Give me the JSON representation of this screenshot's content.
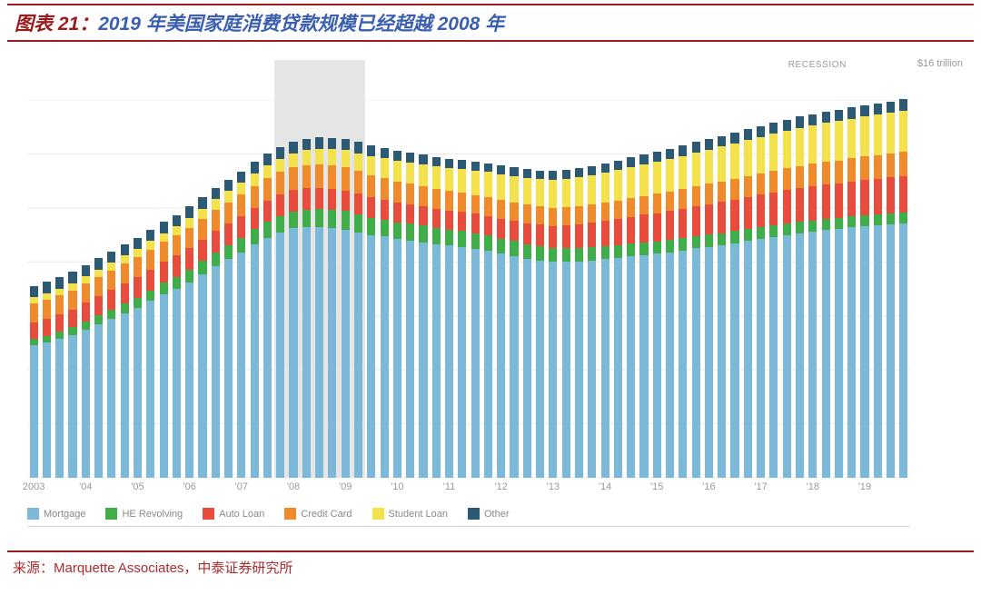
{
  "title_prefix": "图表 21：",
  "title_main": "2019 年美国家庭消费贷款规模已经超越 2008 年",
  "recession_label": "RECESSION",
  "y_top_label": "$16 trillion",
  "source_text": "来源：Marquette Associates，中泰证券研究所",
  "chart": {
    "type": "stacked-bar",
    "ylim": [
      0,
      14
    ],
    "yticks": [
      0,
      2,
      4,
      6,
      8,
      10,
      12,
      14
    ],
    "background_color": "#ffffff",
    "grid_color": "#e9e9e4",
    "axis_text_color": "#9a9a92",
    "recession_band": {
      "start_index": 19,
      "end_index": 26,
      "color": "#e5e5e5"
    },
    "bar_width_ratio": 0.64,
    "series": [
      {
        "key": "mortgage",
        "label": "Mortgage",
        "color": "#7cb8d8"
      },
      {
        "key": "herevolving",
        "label": "HE Revolving",
        "color": "#3fae4a"
      },
      {
        "key": "autoloan",
        "label": "Auto Loan",
        "color": "#e84c3d"
      },
      {
        "key": "creditcard",
        "label": "Credit Card",
        "color": "#ef8b2c"
      },
      {
        "key": "studentloan",
        "label": "Student Loan",
        "color": "#f3e24b"
      },
      {
        "key": "other",
        "label": "Other",
        "color": "#2c5a74"
      }
    ],
    "x_major_labels": [
      "2003",
      "'04",
      "'05",
      "'06",
      "'07",
      "'08",
      "'09",
      "'10",
      "'11",
      "'12",
      "'13",
      "'14",
      "'15",
      "'16",
      "'17",
      "'18",
      "'19"
    ],
    "x_major_every": 4,
    "quarters": 68,
    "data": {
      "mortgage": [
        4.9,
        5.0,
        5.15,
        5.3,
        5.5,
        5.7,
        5.9,
        6.1,
        6.3,
        6.55,
        6.8,
        7.0,
        7.25,
        7.55,
        7.85,
        8.1,
        8.35,
        8.65,
        8.9,
        9.1,
        9.25,
        9.3,
        9.3,
        9.25,
        9.2,
        9.1,
        9.0,
        8.95,
        8.85,
        8.8,
        8.72,
        8.65,
        8.6,
        8.55,
        8.48,
        8.4,
        8.3,
        8.22,
        8.12,
        8.05,
        8.0,
        8.0,
        8.02,
        8.05,
        8.1,
        8.15,
        8.2,
        8.25,
        8.3,
        8.35,
        8.42,
        8.5,
        8.56,
        8.62,
        8.7,
        8.78,
        8.85,
        8.92,
        9.0,
        9.06,
        9.12,
        9.18,
        9.22,
        9.28,
        9.32,
        9.36,
        9.4,
        9.44
      ],
      "herevolving": [
        0.24,
        0.25,
        0.26,
        0.28,
        0.3,
        0.32,
        0.34,
        0.36,
        0.38,
        0.4,
        0.42,
        0.44,
        0.46,
        0.48,
        0.5,
        0.52,
        0.54,
        0.56,
        0.58,
        0.6,
        0.62,
        0.64,
        0.66,
        0.68,
        0.68,
        0.66,
        0.64,
        0.62,
        0.62,
        0.62,
        0.62,
        0.61,
        0.6,
        0.6,
        0.59,
        0.58,
        0.56,
        0.55,
        0.54,
        0.53,
        0.52,
        0.51,
        0.5,
        0.49,
        0.48,
        0.48,
        0.47,
        0.47,
        0.46,
        0.46,
        0.46,
        0.46,
        0.45,
        0.45,
        0.44,
        0.44,
        0.43,
        0.43,
        0.42,
        0.42,
        0.41,
        0.41,
        0.4,
        0.4,
        0.4,
        0.4,
        0.4,
        0.4
      ],
      "autoloan": [
        0.62,
        0.64,
        0.65,
        0.66,
        0.68,
        0.7,
        0.72,
        0.74,
        0.76,
        0.77,
        0.78,
        0.79,
        0.8,
        0.8,
        0.8,
        0.8,
        0.8,
        0.8,
        0.8,
        0.8,
        0.8,
        0.8,
        0.79,
        0.78,
        0.77,
        0.76,
        0.75,
        0.74,
        0.73,
        0.72,
        0.71,
        0.7,
        0.7,
        0.7,
        0.71,
        0.72,
        0.74,
        0.76,
        0.78,
        0.8,
        0.82,
        0.85,
        0.88,
        0.91,
        0.94,
        0.97,
        1.0,
        1.03,
        1.05,
        1.07,
        1.09,
        1.11,
        1.13,
        1.15,
        1.17,
        1.19,
        1.21,
        1.23,
        1.25,
        1.26,
        1.27,
        1.28,
        1.29,
        1.3,
        1.31,
        1.32,
        1.33,
        1.35
      ],
      "creditcard": [
        0.69,
        0.7,
        0.7,
        0.71,
        0.71,
        0.72,
        0.72,
        0.73,
        0.73,
        0.74,
        0.74,
        0.75,
        0.76,
        0.77,
        0.78,
        0.79,
        0.8,
        0.81,
        0.82,
        0.83,
        0.84,
        0.85,
        0.86,
        0.86,
        0.85,
        0.84,
        0.82,
        0.8,
        0.78,
        0.76,
        0.74,
        0.73,
        0.72,
        0.71,
        0.7,
        0.7,
        0.69,
        0.68,
        0.68,
        0.67,
        0.67,
        0.67,
        0.67,
        0.67,
        0.68,
        0.68,
        0.69,
        0.7,
        0.71,
        0.72,
        0.73,
        0.74,
        0.75,
        0.76,
        0.77,
        0.78,
        0.79,
        0.8,
        0.81,
        0.82,
        0.83,
        0.84,
        0.85,
        0.86,
        0.87,
        0.88,
        0.89,
        0.9
      ],
      "studentloan": [
        0.24,
        0.25,
        0.25,
        0.26,
        0.27,
        0.28,
        0.29,
        0.3,
        0.31,
        0.32,
        0.33,
        0.34,
        0.36,
        0.38,
        0.4,
        0.42,
        0.44,
        0.46,
        0.48,
        0.5,
        0.52,
        0.55,
        0.58,
        0.61,
        0.64,
        0.67,
        0.7,
        0.73,
        0.76,
        0.79,
        0.82,
        0.85,
        0.87,
        0.89,
        0.91,
        0.93,
        0.95,
        0.97,
        0.99,
        1.01,
        1.03,
        1.05,
        1.07,
        1.09,
        1.11,
        1.13,
        1.15,
        1.17,
        1.19,
        1.21,
        1.23,
        1.25,
        1.27,
        1.29,
        1.31,
        1.33,
        1.35,
        1.37,
        1.39,
        1.41,
        1.43,
        1.45,
        1.46,
        1.47,
        1.48,
        1.49,
        1.5,
        1.51
      ],
      "other": [
        0.42,
        0.42,
        0.42,
        0.42,
        0.42,
        0.42,
        0.42,
        0.42,
        0.42,
        0.42,
        0.42,
        0.42,
        0.42,
        0.42,
        0.42,
        0.42,
        0.42,
        0.42,
        0.42,
        0.42,
        0.42,
        0.42,
        0.42,
        0.42,
        0.42,
        0.41,
        0.4,
        0.39,
        0.38,
        0.37,
        0.36,
        0.35,
        0.34,
        0.34,
        0.33,
        0.33,
        0.33,
        0.33,
        0.33,
        0.33,
        0.33,
        0.33,
        0.34,
        0.34,
        0.35,
        0.35,
        0.36,
        0.36,
        0.37,
        0.37,
        0.38,
        0.38,
        0.38,
        0.39,
        0.39,
        0.39,
        0.4,
        0.4,
        0.4,
        0.41,
        0.41,
        0.41,
        0.42,
        0.42,
        0.42,
        0.42,
        0.43,
        0.43
      ]
    }
  }
}
